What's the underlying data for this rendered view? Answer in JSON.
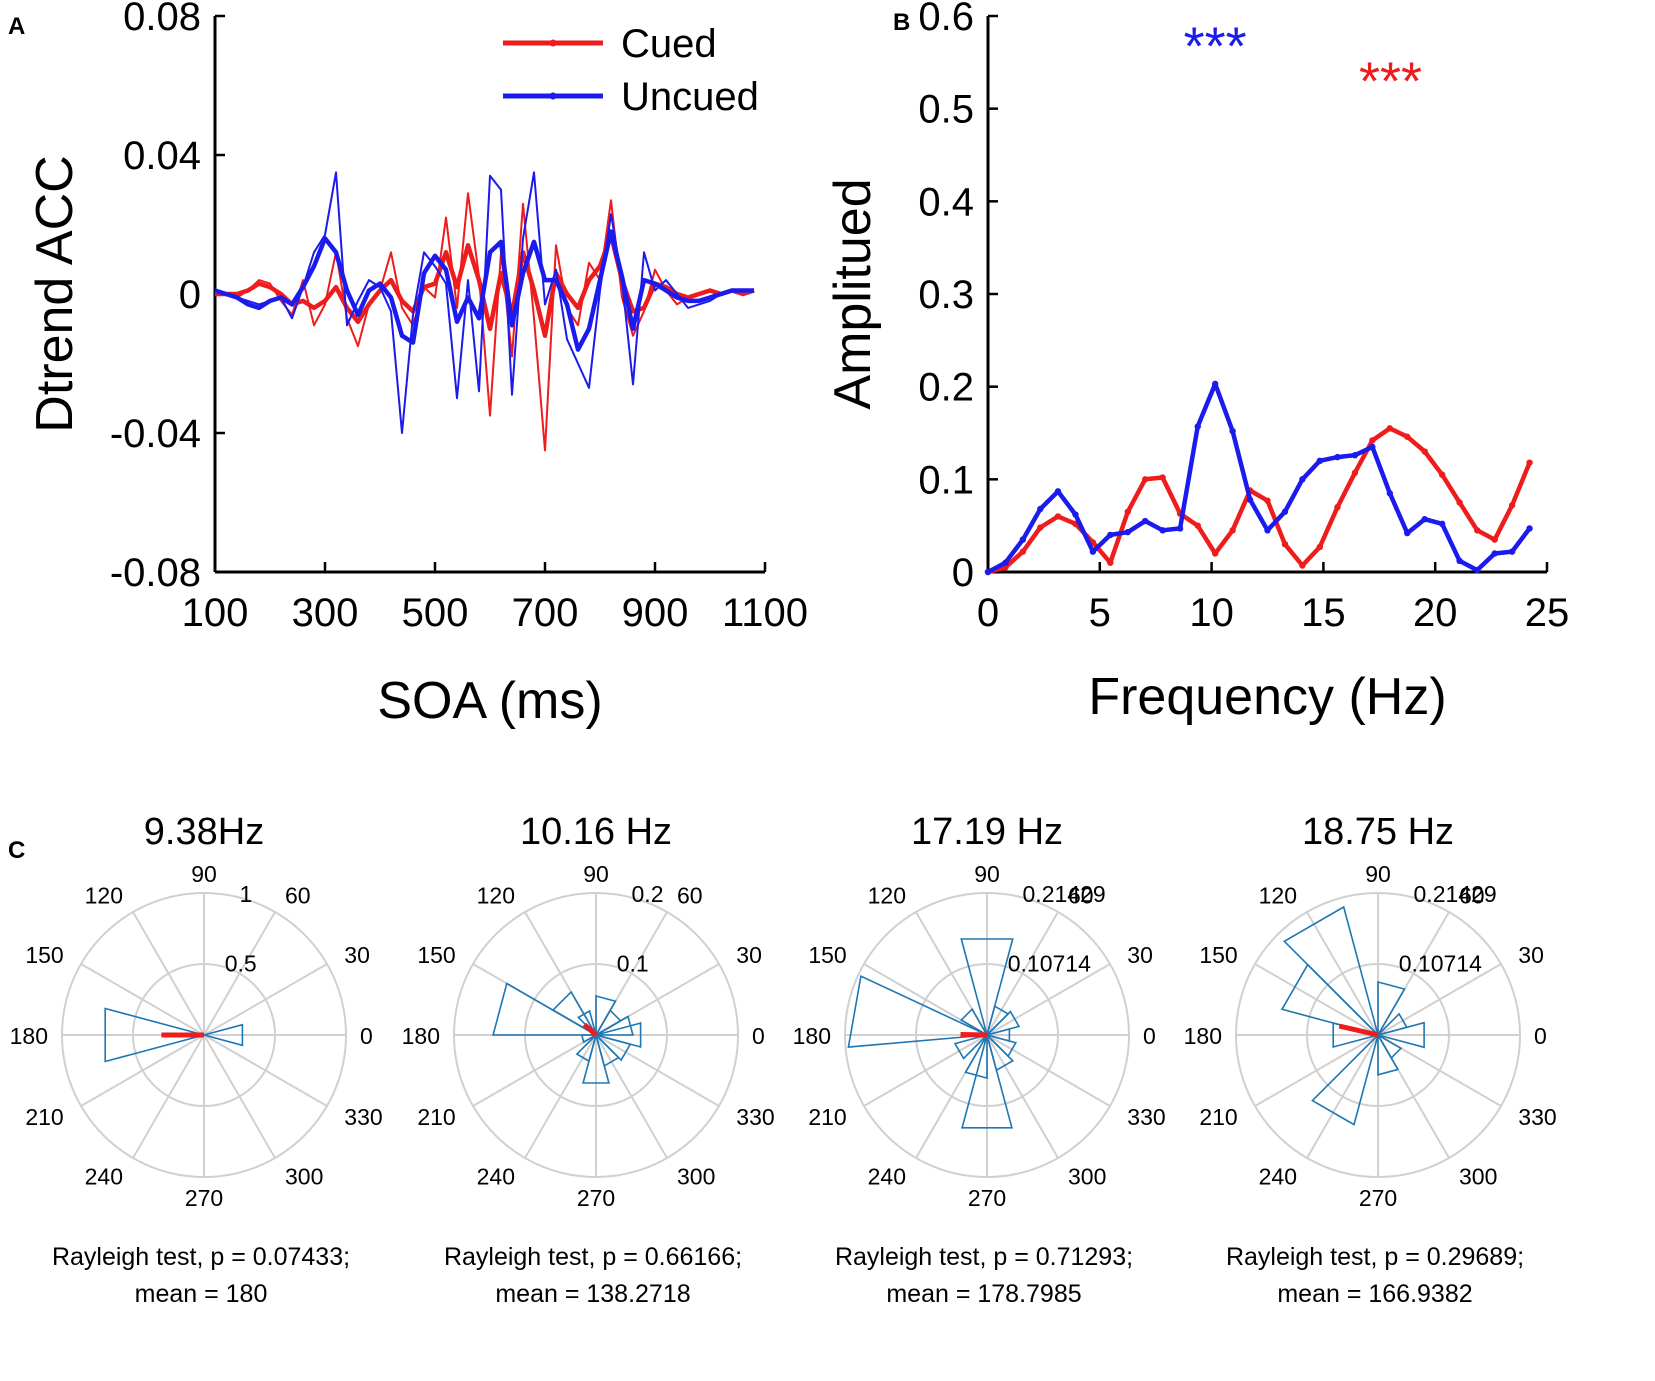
{
  "panels": {
    "a": "A",
    "b": "B",
    "c": "C"
  },
  "colors": {
    "cued": "#ee1c1c",
    "uncued": "#1b1bee",
    "rose": "#1f77b4",
    "grid": "#d0d0d0",
    "axis": "#000000"
  },
  "chart_data": [
    {
      "id": "A",
      "type": "line",
      "xlabel": "SOA (ms)",
      "ylabel": "Dtrend ACC",
      "xlim": [
        100,
        1100
      ],
      "ylim": [
        -0.08,
        0.08
      ],
      "xticks": [
        100,
        300,
        500,
        700,
        900,
        1100
      ],
      "yticks": [
        -0.08,
        -0.04,
        0,
        0.04,
        0.08
      ],
      "ytick_labels": [
        "-0.08",
        "-0.04",
        "0",
        "0.04",
        "0.08"
      ],
      "legend": {
        "position": "top-right",
        "entries": [
          "Cued",
          "Uncued"
        ]
      },
      "series": [
        {
          "name": "Cued",
          "width": "thin",
          "color": "cued",
          "x": [
            100,
            120,
            140,
            160,
            180,
            200,
            220,
            240,
            260,
            280,
            300,
            320,
            340,
            360,
            380,
            400,
            420,
            440,
            460,
            480,
            500,
            520,
            540,
            560,
            580,
            600,
            620,
            640,
            660,
            680,
            700,
            720,
            740,
            760,
            780,
            800,
            820,
            840,
            860,
            880,
            900,
            920,
            940,
            960,
            980,
            1000,
            1020,
            1040,
            1060,
            1080
          ],
          "y": [
            0.0,
            0.0,
            -0.001,
            0.001,
            0.004,
            0.003,
            -0.002,
            -0.006,
            0.004,
            -0.009,
            -0.003,
            0.012,
            -0.007,
            -0.015,
            -0.003,
            0.001,
            0.012,
            -0.004,
            -0.009,
            0.002,
            -0.001,
            0.022,
            -0.004,
            0.029,
            0.005,
            -0.035,
            0.012,
            -0.018,
            0.026,
            -0.007,
            -0.045,
            0.014,
            -0.004,
            -0.009,
            0.009,
            0.004,
            0.027,
            -0.001,
            -0.012,
            -0.005,
            0.007,
            0.001,
            -0.003,
            -0.001,
            0.0,
            0.001,
            0.0,
            0.001,
            0.0,
            0.001
          ]
        },
        {
          "name": "Cued",
          "width": "thick",
          "color": "cued",
          "x": [
            100,
            120,
            140,
            160,
            180,
            200,
            220,
            240,
            260,
            280,
            300,
            320,
            340,
            360,
            380,
            400,
            420,
            440,
            460,
            480,
            500,
            520,
            540,
            560,
            580,
            600,
            620,
            640,
            660,
            680,
            700,
            720,
            740,
            760,
            780,
            800,
            820,
            840,
            860,
            880,
            900,
            920,
            940,
            960,
            980,
            1000,
            1020,
            1040,
            1060,
            1080
          ],
          "y": [
            0.0,
            0.0,
            0.0,
            0.001,
            0.003,
            0.002,
            0.0,
            -0.003,
            -0.002,
            -0.004,
            -0.002,
            0.002,
            -0.004,
            -0.008,
            -0.003,
            0.001,
            0.004,
            -0.002,
            -0.005,
            0.002,
            0.003,
            0.012,
            0.002,
            0.014,
            0.004,
            -0.01,
            0.006,
            -0.006,
            0.012,
            0.001,
            -0.012,
            0.006,
            0.0,
            -0.004,
            0.004,
            0.008,
            0.017,
            0.004,
            -0.005,
            -0.004,
            0.003,
            0.002,
            0.0,
            -0.001,
            0.0,
            0.001,
            0.0,
            0.001,
            0.0,
            0.001
          ]
        },
        {
          "name": "Uncued",
          "width": "thin",
          "color": "uncued",
          "x": [
            100,
            120,
            140,
            160,
            180,
            200,
            220,
            240,
            260,
            280,
            300,
            320,
            340,
            360,
            380,
            400,
            420,
            440,
            460,
            480,
            500,
            520,
            540,
            560,
            580,
            600,
            620,
            640,
            660,
            680,
            700,
            720,
            740,
            760,
            780,
            800,
            820,
            840,
            860,
            880,
            900,
            920,
            940,
            960,
            980,
            1000,
            1020,
            1040,
            1060,
            1080
          ],
          "y": [
            0.001,
            0.0,
            -0.001,
            -0.002,
            -0.003,
            -0.002,
            -0.001,
            -0.007,
            0.002,
            0.012,
            0.017,
            0.035,
            -0.009,
            -0.002,
            0.004,
            0.002,
            -0.005,
            -0.04,
            -0.006,
            0.012,
            0.008,
            0.003,
            -0.03,
            0.004,
            -0.028,
            0.034,
            0.03,
            -0.029,
            0.016,
            0.035,
            -0.003,
            0.007,
            -0.013,
            -0.02,
            -0.027,
            0.001,
            0.023,
            0.004,
            -0.026,
            0.012,
            0.001,
            0.004,
            0.0,
            -0.004,
            -0.003,
            -0.002,
            0.0,
            0.001,
            0.001,
            0.001
          ]
        },
        {
          "name": "Uncued",
          "width": "thick",
          "color": "uncued",
          "x": [
            100,
            120,
            140,
            160,
            180,
            200,
            220,
            240,
            260,
            280,
            300,
            320,
            340,
            360,
            380,
            400,
            420,
            440,
            460,
            480,
            500,
            520,
            540,
            560,
            580,
            600,
            620,
            640,
            660,
            680,
            700,
            720,
            740,
            760,
            780,
            800,
            820,
            840,
            860,
            880,
            900,
            920,
            940,
            960,
            980,
            1000,
            1020,
            1040,
            1060,
            1080
          ],
          "y": [
            0.001,
            0.0,
            -0.001,
            -0.003,
            -0.004,
            -0.002,
            -0.001,
            -0.003,
            0.002,
            0.008,
            0.016,
            0.012,
            0.001,
            -0.006,
            0.001,
            0.003,
            -0.001,
            -0.012,
            -0.014,
            0.006,
            0.011,
            0.007,
            -0.008,
            -0.001,
            -0.007,
            0.012,
            0.015,
            -0.009,
            0.006,
            0.015,
            0.004,
            0.004,
            -0.003,
            -0.016,
            -0.01,
            0.004,
            0.018,
            0.005,
            -0.01,
            0.004,
            0.003,
            0.001,
            -0.001,
            -0.002,
            -0.002,
            -0.001,
            0.0,
            0.001,
            0.001,
            0.001
          ]
        }
      ]
    },
    {
      "id": "B",
      "type": "line",
      "xlabel": "Frequency (Hz)",
      "ylabel": "Amplitued",
      "xlim": [
        0,
        25
      ],
      "ylim": [
        0,
        0.6
      ],
      "xticks": [
        0,
        5,
        10,
        15,
        20,
        25
      ],
      "yticks": [
        0,
        0.1,
        0.2,
        0.3,
        0.4,
        0.5,
        0.6
      ],
      "ytick_labels": [
        "0",
        "0.1",
        "0.2",
        "0.3",
        "0.4",
        "0.5",
        "0.6"
      ],
      "annotations": [
        {
          "text": "***",
          "color": "uncued",
          "x": 10.16,
          "y": 0.578
        },
        {
          "text": "***",
          "color": "cued",
          "x": 18.0,
          "y": 0.54
        }
      ],
      "series": [
        {
          "name": "Cued",
          "color": "cued",
          "x": [
            0,
            0.78,
            1.56,
            2.34,
            3.13,
            3.91,
            4.69,
            5.47,
            6.25,
            7.03,
            7.81,
            8.59,
            9.38,
            10.16,
            10.94,
            11.72,
            12.5,
            13.28,
            14.06,
            14.84,
            15.63,
            16.41,
            17.19,
            17.97,
            18.75,
            19.53,
            20.31,
            21.09,
            21.88,
            22.66,
            23.44,
            24.22
          ],
          "y": [
            0.0,
            0.005,
            0.022,
            0.048,
            0.06,
            0.052,
            0.032,
            0.01,
            0.065,
            0.1,
            0.102,
            0.063,
            0.05,
            0.02,
            0.045,
            0.088,
            0.077,
            0.03,
            0.007,
            0.027,
            0.07,
            0.107,
            0.142,
            0.155,
            0.146,
            0.13,
            0.105,
            0.075,
            0.045,
            0.035,
            0.072,
            0.118
          ]
        },
        {
          "name": "Uncued",
          "color": "uncued",
          "x": [
            0,
            0.78,
            1.56,
            2.34,
            3.13,
            3.91,
            4.69,
            5.47,
            6.25,
            7.03,
            7.81,
            8.59,
            9.38,
            10.16,
            10.94,
            11.72,
            12.5,
            13.28,
            14.06,
            14.84,
            15.63,
            16.41,
            17.19,
            17.97,
            18.75,
            19.53,
            20.31,
            21.09,
            21.88,
            22.66,
            23.44,
            24.22
          ],
          "y": [
            0.0,
            0.01,
            0.035,
            0.068,
            0.087,
            0.062,
            0.022,
            0.04,
            0.043,
            0.055,
            0.045,
            0.047,
            0.157,
            0.203,
            0.152,
            0.078,
            0.045,
            0.065,
            0.1,
            0.12,
            0.124,
            0.126,
            0.135,
            0.085,
            0.042,
            0.057,
            0.052,
            0.012,
            0.002,
            0.02,
            0.022,
            0.047
          ]
        }
      ]
    },
    {
      "id": "C1",
      "type": "polar",
      "title": "9.38Hz",
      "rticks": [
        0.5,
        1
      ],
      "rtick_labels": [
        "0.5",
        "1"
      ],
      "rmax": 1,
      "angle_labels": [
        "0",
        "30",
        "60",
        "90",
        "120",
        "150",
        "180",
        "210",
        "240",
        "300",
        "330",
        "270"
      ],
      "bins": [
        {
          "theta": 0,
          "r": 0.28
        },
        {
          "theta": 180,
          "r": 0.72
        }
      ],
      "mean_vector": {
        "angle": 180,
        "length": 0.3
      },
      "test": "Rayleigh test, p = 0.07433;",
      "mean": "mean = 180"
    },
    {
      "id": "C2",
      "type": "polar",
      "title": "10.16 Hz",
      "rticks": [
        0.1,
        0.2
      ],
      "rtick_labels": [
        "0.1",
        "0.2"
      ],
      "rmax": 0.2,
      "bins": [
        {
          "theta": 0,
          "r": 0.065
        },
        {
          "theta": 15,
          "r": 0.052
        },
        {
          "theta": 45,
          "r": 0.04
        },
        {
          "theta": 75,
          "r": 0.055
        },
        {
          "theta": 120,
          "r": 0.035
        },
        {
          "theta": 135,
          "r": 0.07
        },
        {
          "theta": 165,
          "r": 0.145
        },
        {
          "theta": 195,
          "r": 0.02
        },
        {
          "theta": 240,
          "r": 0.038
        },
        {
          "theta": 270,
          "r": 0.07
        },
        {
          "theta": 300,
          "r": 0.045
        },
        {
          "theta": 330,
          "r": 0.05
        }
      ],
      "mean_vector": {
        "angle": 138.2718,
        "length": 0.022
      },
      "test": "Rayleigh test, p = 0.66166;",
      "mean": "mean = 138.2718"
    },
    {
      "id": "C3",
      "type": "polar",
      "title": "17.19 Hz",
      "rticks": [
        0.10714,
        0.21429
      ],
      "rtick_labels": [
        "0.10714",
        "0.21429"
      ],
      "rmax": 0.21429,
      "bins": [
        {
          "theta": 0,
          "r": 0.035
        },
        {
          "theta": 30,
          "r": 0.05
        },
        {
          "theta": 60,
          "r": 0.045
        },
        {
          "theta": 90,
          "r": 0.15
        },
        {
          "theta": 135,
          "r": 0.045
        },
        {
          "theta": 170,
          "r": 0.21
        },
        {
          "theta": 210,
          "r": 0.05
        },
        {
          "theta": 255,
          "r": 0.065
        },
        {
          "theta": 270,
          "r": 0.145
        },
        {
          "theta": 300,
          "r": 0.055
        },
        {
          "theta": 330,
          "r": 0.045
        }
      ],
      "mean_vector": {
        "angle": 178.7985,
        "length": 0.04
      },
      "test": "Rayleigh test, p = 0.71293;",
      "mean": "mean = 178.7985"
    },
    {
      "id": "C4",
      "type": "polar",
      "title": "18.75 Hz",
      "rticks": [
        0.10714,
        0.21429
      ],
      "rtick_labels": [
        "0.10714",
        "0.21429"
      ],
      "rmax": 0.21429,
      "bins": [
        {
          "theta": 0,
          "r": 0.072
        },
        {
          "theta": 30,
          "r": 0.045
        },
        {
          "theta": 75,
          "r": 0.08
        },
        {
          "theta": 120,
          "r": 0.2
        },
        {
          "theta": 150,
          "r": 0.15
        },
        {
          "theta": 180,
          "r": 0.07
        },
        {
          "theta": 240,
          "r": 0.14
        },
        {
          "theta": 285,
          "r": 0.06
        },
        {
          "theta": 315,
          "r": 0.04
        }
      ],
      "mean_vector": {
        "angle": 166.9382,
        "length": 0.06
      },
      "test": "Rayleigh test, p = 0.29689;",
      "mean": "mean = 166.9382"
    }
  ]
}
